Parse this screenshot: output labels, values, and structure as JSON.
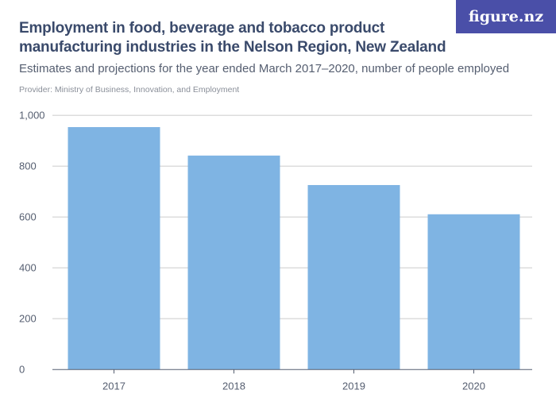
{
  "header": {
    "title": "Employment in food, beverage and tobacco product manufacturing industries in the Nelson Region, New Zealand",
    "subtitle": "Estimates and projections for the year ended March 2017–2020, number of people employed",
    "provider": "Provider: Ministry of Business, Innovation, and Employment",
    "logo": "figure.nz"
  },
  "chart_data": {
    "type": "bar",
    "categories": [
      "2017",
      "2018",
      "2019",
      "2020"
    ],
    "values": [
      954,
      842,
      726,
      611
    ],
    "ylim": [
      0,
      1000
    ],
    "yticks": [
      0,
      200,
      400,
      600,
      800,
      1000
    ],
    "ytick_labels": [
      "0",
      "200",
      "400",
      "600",
      "800",
      "1,000"
    ],
    "grid": true,
    "bar_color": "#7fb4e3"
  }
}
